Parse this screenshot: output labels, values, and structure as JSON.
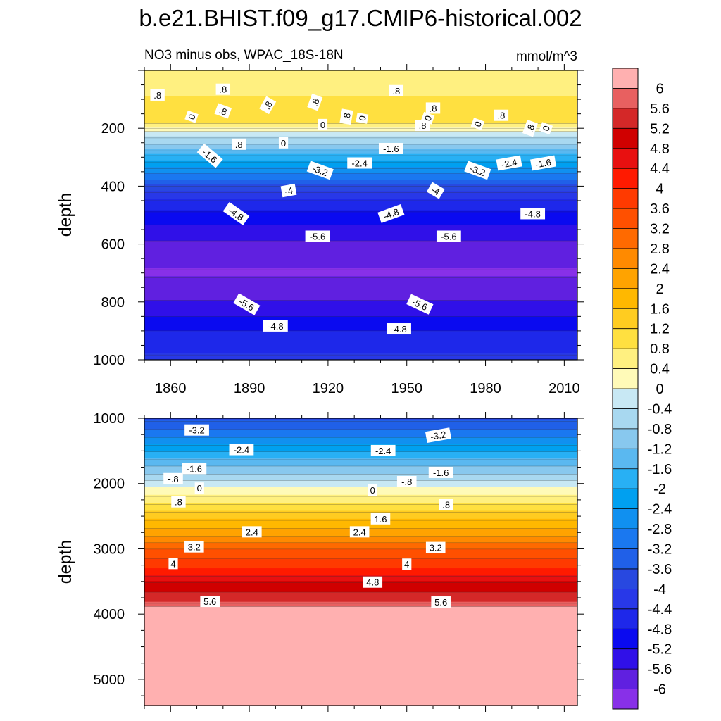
{
  "figure": {
    "title": "b.e21.BHIST.f09_g17.CMIP6-historical.002",
    "subtitle_left": "NO3 minus obs, WPAC_18S-18N",
    "subtitle_right": "mmol/m^3"
  },
  "chart_data": [
    {
      "type": "heatmap",
      "panel": "upper",
      "ylabel": "depth",
      "xlabel": "",
      "xlim": [
        1850,
        2015
      ],
      "ylim": [
        1000,
        0
      ],
      "x_ticks": [
        "1860",
        "1890",
        "1920",
        "1950",
        "1980",
        "2010"
      ],
      "y_ticks": [
        "200",
        "400",
        "600",
        "800",
        "1000"
      ],
      "depth_profile": [
        {
          "depth": 0,
          "value": 0.4
        },
        {
          "depth": 50,
          "value": 0.5
        },
        {
          "depth": 100,
          "value": 0.9
        },
        {
          "depth": 150,
          "value": 1.1
        },
        {
          "depth": 180,
          "value": 0.9
        },
        {
          "depth": 210,
          "value": 0.0
        },
        {
          "depth": 230,
          "value": -0.4
        },
        {
          "depth": 260,
          "value": -0.9
        },
        {
          "depth": 290,
          "value": -1.6
        },
        {
          "depth": 330,
          "value": -2.3
        },
        {
          "depth": 370,
          "value": -3.1
        },
        {
          "depth": 410,
          "value": -3.9
        },
        {
          "depth": 460,
          "value": -4.6
        },
        {
          "depth": 520,
          "value": -5.1
        },
        {
          "depth": 570,
          "value": -5.5
        },
        {
          "depth": 620,
          "value": -5.8
        },
        {
          "depth": 700,
          "value": -6.05
        },
        {
          "depth": 760,
          "value": -5.8
        },
        {
          "depth": 820,
          "value": -5.45
        },
        {
          "depth": 860,
          "value": -5.1
        },
        {
          "depth": 900,
          "value": -4.8
        },
        {
          "depth": 950,
          "value": -4.55
        },
        {
          "depth": 1000,
          "value": -4.3
        }
      ],
      "contour_labels": [
        {
          "text": ".8",
          "x": 1855,
          "depth": 85,
          "angle": 0
        },
        {
          "text": ".8",
          "x": 1880,
          "depth": 65,
          "angle": 0
        },
        {
          "text": ".8",
          "x": 1946,
          "depth": 70,
          "angle": 0
        },
        {
          "text": ".8",
          "x": 1880,
          "depth": 140,
          "angle": 20
        },
        {
          "text": ".8",
          "x": 1897,
          "depth": 120,
          "angle": -60
        },
        {
          "text": ".8",
          "x": 1915,
          "depth": 110,
          "angle": -70
        },
        {
          "text": ".8",
          "x": 1927,
          "depth": 160,
          "angle": -80
        },
        {
          "text": ".8",
          "x": 1956,
          "depth": 190,
          "angle": 0
        },
        {
          "text": ".8",
          "x": 1960,
          "depth": 130,
          "angle": 0
        },
        {
          "text": ".8",
          "x": 1986,
          "depth": 155,
          "angle": 0
        },
        {
          "text": ".8",
          "x": 1997,
          "depth": 200,
          "angle": -70
        },
        {
          "text": ".8",
          "x": 1886,
          "depth": 255,
          "angle": 0
        },
        {
          "text": "0",
          "x": 1868,
          "depth": 160,
          "angle": -70
        },
        {
          "text": "0",
          "x": 1903,
          "depth": 250,
          "angle": 0
        },
        {
          "text": "0",
          "x": 1918,
          "depth": 187,
          "angle": 0
        },
        {
          "text": "0",
          "x": 1933,
          "depth": 165,
          "angle": -80
        },
        {
          "text": "0",
          "x": 1958,
          "depth": 165,
          "angle": -70
        },
        {
          "text": "0",
          "x": 1977,
          "depth": 185,
          "angle": -70
        },
        {
          "text": "0",
          "x": 2003,
          "depth": 200,
          "angle": -70
        },
        {
          "text": "-1.6",
          "x": 1875,
          "depth": 295,
          "angle": 40
        },
        {
          "text": "-1.6",
          "x": 1944,
          "depth": 270,
          "angle": 0
        },
        {
          "text": "-1.6",
          "x": 2002,
          "depth": 320,
          "angle": -10
        },
        {
          "text": "-2.4",
          "x": 1932,
          "depth": 320,
          "angle": 0
        },
        {
          "text": "-2.4",
          "x": 1989,
          "depth": 320,
          "angle": -10
        },
        {
          "text": "-3.2",
          "x": 1917,
          "depth": 345,
          "angle": 20
        },
        {
          "text": "-3.2",
          "x": 1977,
          "depth": 345,
          "angle": 20
        },
        {
          "text": "-4",
          "x": 1905,
          "depth": 415,
          "angle": -10
        },
        {
          "text": "-4",
          "x": 1961,
          "depth": 415,
          "angle": 30
        },
        {
          "text": "-4.8",
          "x": 1885,
          "depth": 495,
          "angle": 35
        },
        {
          "text": "-4.8",
          "x": 1944,
          "depth": 495,
          "angle": -20
        },
        {
          "text": "-4.8",
          "x": 1998,
          "depth": 495,
          "angle": 0
        },
        {
          "text": "-5.6",
          "x": 1916,
          "depth": 573,
          "angle": 0
        },
        {
          "text": "-5.6",
          "x": 1966,
          "depth": 573,
          "angle": 0
        },
        {
          "text": "-5.6",
          "x": 1889,
          "depth": 808,
          "angle": 30
        },
        {
          "text": "-5.6",
          "x": 1955,
          "depth": 808,
          "angle": 25
        },
        {
          "text": "-4.8",
          "x": 1900,
          "depth": 883,
          "angle": 0
        },
        {
          "text": "-4.8",
          "x": 1947,
          "depth": 893,
          "angle": 0
        }
      ]
    },
    {
      "type": "heatmap",
      "panel": "lower",
      "ylabel": "depth",
      "xlabel": "",
      "xlim": [
        1850,
        2015
      ],
      "ylim": [
        5400,
        1000
      ],
      "y_ticks": [
        "1000",
        "2000",
        "3000",
        "4000",
        "5000"
      ],
      "depth_profile": [
        {
          "depth": 1000,
          "value": -3.7
        },
        {
          "depth": 1200,
          "value": -3.1
        },
        {
          "depth": 1400,
          "value": -2.4
        },
        {
          "depth": 1650,
          "value": -1.5
        },
        {
          "depth": 1900,
          "value": -0.6
        },
        {
          "depth": 2050,
          "value": 0.0
        },
        {
          "depth": 2300,
          "value": 0.8
        },
        {
          "depth": 2550,
          "value": 1.6
        },
        {
          "depth": 2800,
          "value": 2.4
        },
        {
          "depth": 3000,
          "value": 3.2
        },
        {
          "depth": 3300,
          "value": 4.0
        },
        {
          "depth": 3500,
          "value": 4.8
        },
        {
          "depth": 3700,
          "value": 5.3
        },
        {
          "depth": 3850,
          "value": 5.7
        },
        {
          "depth": 3900,
          "value": 6.2
        },
        {
          "depth": 5400,
          "value": 6.2
        }
      ],
      "contour_labels": [
        {
          "text": "-3.2",
          "x": 1870,
          "depth": 1180,
          "angle": 0
        },
        {
          "text": "-3.2",
          "x": 1962,
          "depth": 1260,
          "angle": -10
        },
        {
          "text": "-2.4",
          "x": 1887,
          "depth": 1480,
          "angle": 0
        },
        {
          "text": "-2.4",
          "x": 1941,
          "depth": 1495,
          "angle": 0
        },
        {
          "text": "-1.6",
          "x": 1869,
          "depth": 1770,
          "angle": 0
        },
        {
          "text": "-1.6",
          "x": 1963,
          "depth": 1830,
          "angle": 0
        },
        {
          "text": "-.8",
          "x": 1861,
          "depth": 1925,
          "angle": 0
        },
        {
          "text": "-.8",
          "x": 1950,
          "depth": 1970,
          "angle": 0
        },
        {
          "text": "0",
          "x": 1871,
          "depth": 2070,
          "angle": 0
        },
        {
          "text": "0",
          "x": 1937,
          "depth": 2100,
          "angle": 0
        },
        {
          "text": ".8",
          "x": 1863,
          "depth": 2280,
          "angle": 0
        },
        {
          "text": ".8",
          "x": 1965,
          "depth": 2320,
          "angle": 0
        },
        {
          "text": "1.6",
          "x": 1940,
          "depth": 2540,
          "angle": 0
        },
        {
          "text": "2.4",
          "x": 1891,
          "depth": 2740,
          "angle": 0
        },
        {
          "text": "2.4",
          "x": 1932,
          "depth": 2740,
          "angle": 0
        },
        {
          "text": "3.2",
          "x": 1869,
          "depth": 2970,
          "angle": 0
        },
        {
          "text": "3.2",
          "x": 1961,
          "depth": 2980,
          "angle": 0
        },
        {
          "text": "4",
          "x": 1861,
          "depth": 3225,
          "angle": 0
        },
        {
          "text": "4",
          "x": 1950,
          "depth": 3235,
          "angle": 0
        },
        {
          "text": "4.8",
          "x": 1937,
          "depth": 3510,
          "angle": 0
        },
        {
          "text": "5.6",
          "x": 1875,
          "depth": 3805,
          "angle": 0
        },
        {
          "text": "5.6",
          "x": 1963,
          "depth": 3815,
          "angle": 0
        }
      ]
    }
  ],
  "colorbar": {
    "labels": [
      "6",
      "5.6",
      "5.2",
      "4.8",
      "4.4",
      "4",
      "3.6",
      "3.2",
      "2.8",
      "2.4",
      "2",
      "1.6",
      "1.2",
      "0.8",
      "0.4",
      "0",
      "-0.4",
      "-0.8",
      "-1.2",
      "-1.6",
      "-2",
      "-2.4",
      "-2.8",
      "-3.2",
      "-3.6",
      "-4",
      "-4.4",
      "-4.8",
      "-5.2",
      "-5.6",
      "-6"
    ],
    "colors": [
      "#ffb0b0",
      "#e86060",
      "#d42828",
      "#d00000",
      "#e81010",
      "#ff1a00",
      "#ff3a00",
      "#ff5000",
      "#ff6a00",
      "#ff8a00",
      "#ffa300",
      "#ffb800",
      "#ffcc20",
      "#ffe040",
      "#fff080",
      "#fffab8",
      "#c8e8f4",
      "#a8d8f0",
      "#88c8ee",
      "#5ab8f0",
      "#28b0f4",
      "#00a0f0",
      "#1090f0",
      "#1a78f0",
      "#2060e8",
      "#2848e0",
      "#2838e8",
      "#1e28ea",
      "#0a0af0",
      "#3010e8",
      "#6020e0",
      "#8830e8"
    ]
  }
}
